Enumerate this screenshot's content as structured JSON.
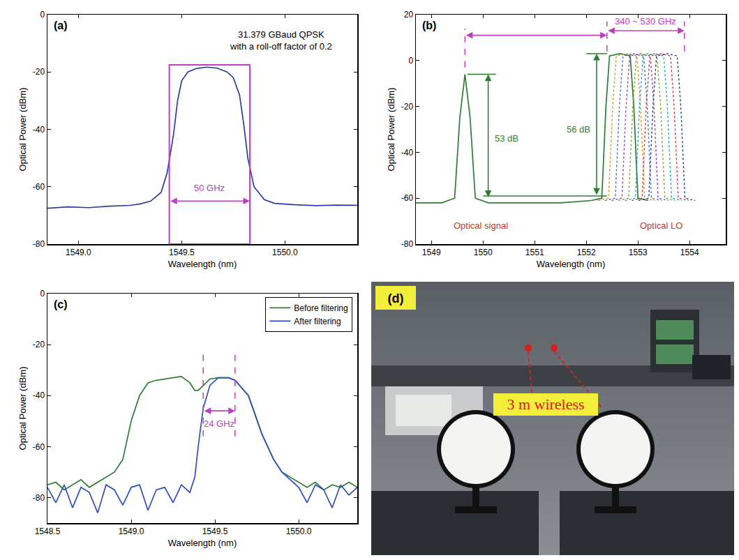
{
  "chart_data": [
    {
      "panel": "(a)",
      "type": "line",
      "x_label": "Wavelength (nm)",
      "y_label": "Optical Power (dBm)",
      "xlim": [
        1548.85,
        1550.35
      ],
      "xticks": [
        {
          "value": 1549,
          "label": "1549.0"
        },
        {
          "value": 1549.5,
          "label": "1549.5"
        },
        {
          "value": 1550,
          "label": "1550.0"
        }
      ],
      "ylim": [
        -80,
        0
      ],
      "yticks": [
        -80,
        -60,
        -40,
        -20,
        0
      ],
      "grid": false,
      "series": [
        {
          "color": "#2b3d9b",
          "line_style": "solid",
          "x": [
            1548.85,
            1548.95,
            1549.05,
            1549.15,
            1549.25,
            1549.3,
            1549.35,
            1549.4,
            1549.43,
            1549.46,
            1549.48,
            1549.5,
            1549.53,
            1549.57,
            1549.62,
            1549.67,
            1549.72,
            1549.75,
            1549.78,
            1549.8,
            1549.82,
            1549.85,
            1549.9,
            1549.95,
            1550.05,
            1550.15,
            1550.25,
            1550.35
          ],
          "values": [
            -67.5,
            -67,
            -67.3,
            -66.8,
            -66.5,
            -66,
            -65,
            -62,
            -55,
            -42,
            -30,
            -23,
            -20,
            -18.8,
            -18.3,
            -18.6,
            -20,
            -22,
            -28,
            -38,
            -50,
            -60,
            -64.5,
            -65.8,
            -66.3,
            -66.6,
            -66.4,
            -66.5
          ]
        }
      ],
      "box": {
        "x": [
          1549.44,
          1549.83
        ],
        "y": [
          -80,
          -17.5
        ],
        "color": "#c03cc0"
      },
      "arrows": [
        {
          "x": [
            1549.44,
            1549.83
          ],
          "y": [
            -65,
            -65
          ],
          "color": "#c03cc0"
        }
      ],
      "guides": [],
      "notes": [
        {
          "text": [
            "31.379 GBaud QPSK",
            "with a roll-off factor of 0.2"
          ],
          "x": 1549.98,
          "y": -9,
          "color": "#000000"
        },
        {
          "text": [
            "50 GHz"
          ],
          "x": 1549.635,
          "y": -60.5,
          "color": "#c03cc0"
        }
      ]
    },
    {
      "panel": "(b)",
      "type": "line",
      "x_label": "Wavelength (nm)",
      "y_label": "Optical Power (dBm)",
      "xlim": [
        1548.7,
        1554.7
      ],
      "xticks": [
        1549,
        1550,
        1551,
        1552,
        1553,
        1554
      ],
      "ylim": [
        -80,
        20
      ],
      "yticks": [
        -80,
        -60,
        -40,
        -20,
        0,
        20
      ],
      "grid": false,
      "series": [
        {
          "color": "#2e7d32",
          "line_style": "solid",
          "x": [
            1548.7,
            1549.2,
            1549.45,
            1549.55,
            1549.65,
            1549.75,
            1549.85,
            1550.1,
            1550.5,
            1551,
            1551.5,
            1552.1
          ],
          "values": [
            -62,
            -62,
            -60,
            -25,
            -6,
            -25,
            -60,
            -62,
            -62,
            -62,
            -62,
            -61
          ]
        },
        {
          "color": "#2e7d32",
          "line_style": "solid",
          "x": [
            1552.1,
            1552.3,
            1552.38,
            1552.45,
            1552.65,
            1552.85,
            1552.92,
            1553.0,
            1553.2
          ],
          "values": [
            -61,
            -60,
            -20,
            2,
            3,
            2,
            -20,
            -60,
            -61
          ]
        },
        {
          "color": "#e08a1e",
          "line_style": "dot",
          "x": [
            1552.23,
            1552.43,
            1552.51,
            1552.58,
            1552.78,
            1552.98,
            1553.05,
            1553.13,
            1553.33
          ],
          "values": [
            -61,
            -60,
            -20,
            2,
            3,
            2,
            -20,
            -60,
            -61
          ]
        },
        {
          "color": "#3a6fd8",
          "line_style": "dot",
          "x": [
            1552.36,
            1552.56,
            1552.64,
            1552.71,
            1552.91,
            1553.11,
            1553.18,
            1553.26,
            1553.46
          ],
          "values": [
            -61,
            -60,
            -20,
            2,
            3,
            2,
            -20,
            -60,
            -61
          ]
        },
        {
          "color": "#8e44ad",
          "line_style": "dot",
          "x": [
            1552.49,
            1552.69,
            1552.77,
            1552.84,
            1553.04,
            1553.24,
            1553.31,
            1553.39,
            1553.59
          ],
          "values": [
            -61,
            -60,
            -20,
            2,
            3,
            2,
            -20,
            -60,
            -61
          ]
        },
        {
          "color": "#8a9a2a",
          "line_style": "dot",
          "x": [
            1552.62,
            1552.82,
            1552.9,
            1552.97,
            1553.17,
            1553.37,
            1553.44,
            1553.52,
            1553.72
          ],
          "values": [
            -61,
            -60,
            -20,
            2,
            3,
            2,
            -20,
            -60,
            -61
          ]
        },
        {
          "color": "#1fa3b8",
          "line_style": "dot",
          "x": [
            1552.75,
            1552.95,
            1553.03,
            1553.1,
            1553.3,
            1553.5,
            1553.57,
            1553.65,
            1553.85
          ],
          "values": [
            -61,
            -60,
            -20,
            2,
            3,
            2,
            -20,
            -60,
            -61
          ]
        },
        {
          "color": "#d03a3a",
          "line_style": "dot",
          "x": [
            1552.88,
            1553.08,
            1553.16,
            1553.23,
            1553.43,
            1553.63,
            1553.7,
            1553.78,
            1553.98
          ],
          "values": [
            -61,
            -60,
            -20,
            2,
            3,
            2,
            -20,
            -60,
            -61
          ]
        },
        {
          "color": "#233a8c",
          "line_style": "dot",
          "x": [
            1553.01,
            1553.21,
            1553.29,
            1553.36,
            1553.56,
            1553.76,
            1553.83,
            1553.91,
            1554.11
          ],
          "values": [
            -61,
            -60,
            -20,
            2,
            3,
            2,
            -20,
            -60,
            -61
          ]
        }
      ],
      "arrows": [
        {
          "x": [
            1550.1,
            1550.1
          ],
          "y": [
            -60,
            -6
          ],
          "color": "#2e7d32"
        },
        {
          "x": [
            1552.2,
            1552.2
          ],
          "y": [
            -59,
            3
          ],
          "color": "#2e7d32"
        },
        {
          "x": [
            1549.65,
            1552.4
          ],
          "y": [
            11,
            11
          ],
          "color": "#c03cc0"
        },
        {
          "x": [
            1552.4,
            1553.9
          ],
          "y": [
            13,
            13
          ],
          "color": "#c03cc0"
        }
      ],
      "guides": [
        {
          "x": [
            1549.65,
            1549.65
          ],
          "y": [
            -3,
            14
          ],
          "color": "#c03cc0",
          "line_style": "dash"
        },
        {
          "x": [
            1552.4,
            1552.4
          ],
          "y": [
            4,
            17
          ],
          "color": "#c03cc0",
          "line_style": "dash"
        },
        {
          "x": [
            1553.9,
            1553.9
          ],
          "y": [
            4,
            17
          ],
          "color": "#c03cc0",
          "line_style": "dash"
        },
        {
          "x": [
            1549.7,
            1550.25
          ],
          "y": [
            -6,
            -6
          ],
          "color": "#2e7d32",
          "line_style": "solid"
        },
        {
          "x": [
            1552.0,
            1552.4
          ],
          "y": [
            3,
            3
          ],
          "color": "#2e7d32",
          "line_style": "solid"
        },
        {
          "x": [
            1550.0,
            1552.4
          ],
          "y": [
            -59,
            -59
          ],
          "color": "#2e7d32",
          "line_style": "solid"
        }
      ],
      "notes": [
        {
          "text": [
            "Optical signal"
          ],
          "x": 1549.95,
          "y": -72,
          "color": "#c0392b"
        },
        {
          "text": [
            "Optical LO"
          ],
          "x": 1553.45,
          "y": -72,
          "color": "#c0392b"
        },
        {
          "text": [
            "53 dB"
          ],
          "x": 1550.45,
          "y": -34,
          "color": "#2e7d32"
        },
        {
          "text": [
            "56 dB"
          ],
          "x": 1551.85,
          "y": -30,
          "color": "#2e7d32"
        },
        {
          "text": [
            "340 ~ 530 GHz"
          ],
          "x": 1553.15,
          "y": 17,
          "color": "#c03cc0"
        }
      ]
    },
    {
      "panel": "(c)",
      "type": "line",
      "x_label": "Wavelength (nm)",
      "y_label": "Optical Power (dBm)",
      "xlim": [
        1548.5,
        1550.35
      ],
      "xticks": [
        {
          "value": 1548.5,
          "label": "1548.5"
        },
        {
          "value": 1549,
          "label": "1549.0"
        },
        {
          "value": 1549.5,
          "label": "1549.5"
        },
        {
          "value": 1550,
          "label": "1550.0"
        }
      ],
      "ylim": [
        -90,
        0
      ],
      "yticks": [
        -80,
        -60,
        -40,
        -20,
        0
      ],
      "grid": false,
      "legend": "top right",
      "series": [
        {
          "name": "Before filtering",
          "color": "#2e7d32",
          "line_style": "solid",
          "x": [
            1548.5,
            1548.55,
            1548.6,
            1548.65,
            1548.7,
            1548.75,
            1548.8,
            1548.85,
            1548.9,
            1548.95,
            1549.0,
            1549.05,
            1549.1,
            1549.15,
            1549.2,
            1549.25,
            1549.3,
            1549.35,
            1549.38,
            1549.4,
            1549.43,
            1549.47,
            1549.52,
            1549.58,
            1549.62,
            1549.7,
            1549.78,
            1549.85,
            1549.9,
            1549.95,
            1550.0,
            1550.05,
            1550.1,
            1550.15,
            1550.2,
            1550.25,
            1550.3,
            1550.35
          ],
          "values": [
            -75,
            -74,
            -77,
            -75,
            -73,
            -76,
            -74,
            -72,
            -70,
            -65,
            -50,
            -40,
            -35,
            -34,
            -33.5,
            -33,
            -32.5,
            -35,
            -38,
            -38,
            -36,
            -33.5,
            -33,
            -33,
            -34,
            -40,
            -55,
            -65,
            -70,
            -72,
            -74,
            -76,
            -74,
            -77,
            -75,
            -76,
            -74,
            -76
          ]
        },
        {
          "name": "After filtering",
          "color": "#2f4fbf",
          "line_style": "solid",
          "x": [
            1548.5,
            1548.55,
            1548.6,
            1548.65,
            1548.7,
            1548.75,
            1548.8,
            1548.85,
            1548.9,
            1548.95,
            1549.0,
            1549.05,
            1549.1,
            1549.15,
            1549.2,
            1549.25,
            1549.3,
            1549.35,
            1549.38,
            1549.4,
            1549.43,
            1549.47,
            1549.52,
            1549.58,
            1549.62,
            1549.7,
            1549.78,
            1549.85,
            1549.9,
            1549.95,
            1550.0,
            1550.05,
            1550.1,
            1550.15,
            1550.2,
            1550.25,
            1550.3,
            1550.35
          ],
          "values": [
            -76,
            -82,
            -75,
            -84,
            -76,
            -78,
            -86,
            -75,
            -77,
            -83,
            -76,
            -75,
            -85,
            -77,
            -76,
            -82,
            -75,
            -78,
            -72,
            -60,
            -45,
            -36,
            -33,
            -33,
            -34,
            -40,
            -55,
            -65,
            -70,
            -73,
            -76,
            -82,
            -75,
            -77,
            -84,
            -75,
            -79,
            -76
          ]
        }
      ],
      "arrows": [
        {
          "x": [
            1549.43,
            1549.62
          ],
          "y": [
            -46,
            -46
          ],
          "color": "#c03cc0"
        }
      ],
      "guides": [
        {
          "x": [
            1549.43,
            1549.43
          ],
          "y": [
            -56,
            -22
          ],
          "color": "#c03cc0",
          "line_style": "dash"
        },
        {
          "x": [
            1549.62,
            1549.62
          ],
          "y": [
            -56,
            -22
          ],
          "color": "#c03cc0",
          "line_style": "dash"
        }
      ],
      "notes": [
        {
          "text": [
            "24 GHz"
          ],
          "x": 1549.525,
          "y": -51,
          "color": "#c03cc0"
        }
      ]
    }
  ],
  "photo": {
    "panel": "(d)",
    "label": "3 m wireless"
  }
}
